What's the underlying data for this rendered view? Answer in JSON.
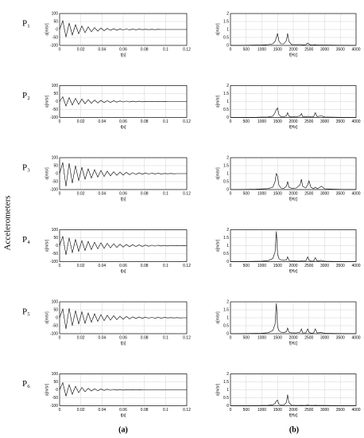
{
  "group_label": "Accelerometers",
  "panel_labels": [
    "(a)",
    "(b)"
  ],
  "row_labels": [
    "P₁",
    "P₂",
    "P₃",
    "P₄",
    "P₅",
    "P₆"
  ],
  "chart_data": [
    {
      "type": "line",
      "color": "#000000",
      "grid": true,
      "xlabel": "t[s]",
      "ylabel": "a[m/s²]",
      "xlim": [
        0,
        0.12
      ],
      "ylim": [
        -100,
        100
      ],
      "xticks": [
        0,
        0.02,
        0.04,
        0.06,
        0.08,
        0.1,
        0.12
      ],
      "yticks": [
        -100,
        -50,
        0,
        50,
        100
      ],
      "x": [
        0,
        0.003,
        0.006,
        0.009,
        0.012,
        0.015,
        0.018,
        0.021,
        0.024,
        0.027,
        0.03,
        0.033,
        0.036,
        0.039,
        0.042,
        0.045,
        0.048,
        0.051,
        0.054,
        0.057,
        0.06,
        0.063,
        0.066,
        0.069,
        0.072,
        0.075,
        0.078,
        0.081,
        0.084,
        0.087,
        0.09,
        0.093,
        0.096,
        0.099,
        0.102,
        0.105,
        0.108,
        0.111,
        0.114,
        0.117,
        0.12
      ],
      "values": [
        0,
        55,
        -48,
        40,
        -35,
        30,
        -27,
        22,
        -20,
        17,
        -15,
        12,
        -11,
        9,
        -8,
        7,
        -6,
        5,
        -5,
        4,
        -3,
        3,
        -3,
        2,
        -2,
        2,
        -1,
        1,
        -1,
        1,
        -1,
        1,
        0,
        0,
        0,
        0,
        0,
        0,
        0,
        0,
        0
      ]
    },
    {
      "type": "line",
      "color": "#000000",
      "grid": true,
      "xlabel": "f[Hz]",
      "ylabel": "a[m/s²]",
      "xlim": [
        0,
        4000
      ],
      "ylim": [
        0,
        2
      ],
      "xticks": [
        0,
        500,
        1000,
        1500,
        2000,
        2500,
        3000,
        3500,
        4000
      ],
      "yticks": [
        0,
        0.5,
        1,
        1.5,
        2
      ],
      "x": [
        0,
        200,
        500,
        800,
        1000,
        1200,
        1350,
        1420,
        1460,
        1500,
        1540,
        1600,
        1700,
        1780,
        1820,
        1860,
        1950,
        2100,
        2220,
        2260,
        2300,
        2400,
        2460,
        2500,
        2560,
        2650,
        2700,
        2760,
        2900,
        3000,
        3500,
        4000
      ],
      "values": [
        0,
        0,
        0.01,
        0.02,
        0.03,
        0.05,
        0.1,
        0.25,
        0.5,
        0.75,
        0.3,
        0.1,
        0.1,
        0.3,
        0.75,
        0.25,
        0.05,
        0.05,
        0.05,
        0.05,
        0.03,
        0.05,
        0.15,
        0.08,
        0.03,
        0.03,
        0.05,
        0.02,
        0.02,
        0.02,
        0.01,
        0
      ]
    },
    {
      "type": "line",
      "color": "#000000",
      "grid": true,
      "xlabel": "t[s]",
      "ylabel": "a[m/s²]",
      "xlim": [
        0,
        0.12
      ],
      "ylim": [
        -100,
        100
      ],
      "xticks": [
        0,
        0.02,
        0.04,
        0.06,
        0.08,
        0.1,
        0.12
      ],
      "yticks": [
        -100,
        -50,
        0,
        50,
        100
      ],
      "x": [
        0,
        0.003,
        0.006,
        0.009,
        0.012,
        0.015,
        0.018,
        0.021,
        0.024,
        0.027,
        0.03,
        0.033,
        0.036,
        0.039,
        0.042,
        0.045,
        0.048,
        0.051,
        0.054,
        0.057,
        0.06,
        0.063,
        0.066,
        0.069,
        0.072,
        0.075,
        0.078,
        0.081,
        0.084,
        0.087,
        0.09,
        0.093,
        0.096,
        0.099,
        0.102,
        0.105,
        0.108,
        0.111,
        0.114,
        0.117,
        0.12
      ],
      "values": [
        0,
        30,
        -28,
        25,
        -22,
        20,
        -18,
        16,
        -14,
        12,
        -11,
        10,
        -9,
        8,
        -7,
        6,
        -6,
        5,
        -4,
        4,
        -3,
        3,
        -3,
        2,
        -2,
        2,
        -2,
        1,
        -1,
        1,
        -1,
        1,
        -1,
        1,
        0,
        0,
        0,
        0,
        0,
        0,
        0
      ]
    },
    {
      "type": "line",
      "color": "#000000",
      "grid": true,
      "xlabel": "f[Hz]",
      "ylabel": "a[m/s²]",
      "xlim": [
        0,
        4000
      ],
      "ylim": [
        0,
        2
      ],
      "xticks": [
        0,
        500,
        1000,
        1500,
        2000,
        2500,
        3000,
        3500,
        4000
      ],
      "yticks": [
        0,
        0.5,
        1,
        1.5,
        2
      ],
      "x": [
        0,
        200,
        500,
        800,
        1000,
        1200,
        1350,
        1420,
        1460,
        1500,
        1540,
        1600,
        1700,
        1780,
        1820,
        1860,
        1950,
        2100,
        2220,
        2260,
        2300,
        2400,
        2460,
        2500,
        2560,
        2650,
        2700,
        2760,
        2900,
        3000,
        3500,
        4000
      ],
      "values": [
        0,
        0,
        0.01,
        0.01,
        0.02,
        0.03,
        0.08,
        0.3,
        0.5,
        0.6,
        0.2,
        0.05,
        0.05,
        0.1,
        0.3,
        0.08,
        0.03,
        0.05,
        0.1,
        0.25,
        0.05,
        0.03,
        0.08,
        0.05,
        0.03,
        0.05,
        0.3,
        0.06,
        0.1,
        0.03,
        0.01,
        0
      ]
    },
    {
      "type": "line",
      "color": "#000000",
      "grid": true,
      "xlabel": "t[s]",
      "ylabel": "a[m/s²]",
      "xlim": [
        0,
        0.12
      ],
      "ylim": [
        -100,
        100
      ],
      "xticks": [
        0,
        0.02,
        0.04,
        0.06,
        0.08,
        0.1,
        0.12
      ],
      "yticks": [
        -100,
        -50,
        0,
        50,
        100
      ],
      "x": [
        0,
        0.003,
        0.006,
        0.009,
        0.012,
        0.015,
        0.018,
        0.021,
        0.024,
        0.027,
        0.03,
        0.033,
        0.036,
        0.039,
        0.042,
        0.045,
        0.048,
        0.051,
        0.054,
        0.057,
        0.06,
        0.063,
        0.066,
        0.069,
        0.072,
        0.075,
        0.078,
        0.081,
        0.084,
        0.087,
        0.09,
        0.093,
        0.096,
        0.099,
        0.102,
        0.105,
        0.108,
        0.111,
        0.114,
        0.117,
        0.12
      ],
      "values": [
        0,
        70,
        -80,
        65,
        -60,
        50,
        -45,
        40,
        -35,
        30,
        -28,
        25,
        -22,
        20,
        -18,
        16,
        -14,
        12,
        -11,
        10,
        -9,
        8,
        -7,
        6,
        -6,
        5,
        -4,
        4,
        -3,
        3,
        -2,
        2,
        -2,
        1,
        -1,
        1,
        -1,
        0,
        0,
        0,
        0
      ]
    },
    {
      "type": "line",
      "color": "#000000",
      "grid": true,
      "xlabel": "f[Hz]",
      "ylabel": "a[m/s²]",
      "xlim": [
        0,
        4000
      ],
      "ylim": [
        0,
        2
      ],
      "xticks": [
        0,
        500,
        1000,
        1500,
        2000,
        2500,
        3000,
        3500,
        4000
      ],
      "yticks": [
        0,
        0.5,
        1,
        1.5,
        2
      ],
      "x": [
        0,
        200,
        500,
        800,
        1000,
        1200,
        1350,
        1420,
        1460,
        1500,
        1540,
        1600,
        1700,
        1780,
        1820,
        1860,
        1950,
        2100,
        2220,
        2260,
        2300,
        2400,
        2460,
        2500,
        2560,
        2650,
        2700,
        2760,
        2900,
        3000,
        3500,
        4000
      ],
      "values": [
        0,
        0,
        0.01,
        0.02,
        0.04,
        0.06,
        0.15,
        0.5,
        1,
        0.85,
        0.3,
        0.1,
        0.08,
        0.2,
        0.5,
        0.15,
        0.08,
        0.1,
        0.3,
        0.65,
        0.2,
        0.1,
        0.3,
        0.55,
        0.15,
        0.05,
        0.15,
        0.05,
        0.2,
        0.05,
        0.01,
        0
      ]
    },
    {
      "type": "line",
      "color": "#000000",
      "grid": true,
      "xlabel": "t[s]",
      "ylabel": "a[m/s²]",
      "xlim": [
        0,
        0.12
      ],
      "ylim": [
        -100,
        100
      ],
      "xticks": [
        0,
        0.02,
        0.04,
        0.06,
        0.08,
        0.1,
        0.12
      ],
      "yticks": [
        -100,
        -50,
        0,
        50,
        100
      ],
      "x": [
        0,
        0.003,
        0.006,
        0.009,
        0.012,
        0.015,
        0.018,
        0.021,
        0.024,
        0.027,
        0.03,
        0.033,
        0.036,
        0.039,
        0.042,
        0.045,
        0.048,
        0.051,
        0.054,
        0.057,
        0.06,
        0.063,
        0.066,
        0.069,
        0.072,
        0.075,
        0.078,
        0.081,
        0.084,
        0.087,
        0.09,
        0.093,
        0.096,
        0.099,
        0.102,
        0.105,
        0.108,
        0.111,
        0.114,
        0.117,
        0.12
      ],
      "values": [
        0,
        60,
        -58,
        50,
        -45,
        40,
        -36,
        32,
        -30,
        27,
        -25,
        22,
        -20,
        18,
        -17,
        15,
        -14,
        12,
        -11,
        10,
        -9,
        8,
        -7,
        7,
        -6,
        5,
        -5,
        4,
        -4,
        3,
        -3,
        3,
        -2,
        2,
        -2,
        2,
        -1,
        1,
        -1,
        1,
        0
      ]
    },
    {
      "type": "line",
      "color": "#000000",
      "grid": true,
      "xlabel": "f[Hz]",
      "ylabel": "a[m/s²]",
      "xlim": [
        0,
        4000
      ],
      "ylim": [
        0,
        2
      ],
      "xticks": [
        0,
        500,
        1000,
        1500,
        2000,
        2500,
        3000,
        3500,
        4000
      ],
      "yticks": [
        0,
        0.5,
        1,
        1.5,
        2
      ],
      "x": [
        0,
        200,
        500,
        800,
        1000,
        1200,
        1350,
        1420,
        1460,
        1500,
        1540,
        1600,
        1700,
        1780,
        1820,
        1860,
        1950,
        2100,
        2220,
        2260,
        2300,
        2400,
        2460,
        2500,
        2560,
        2650,
        2700,
        2760,
        2900,
        3000,
        3500,
        4000
      ],
      "values": [
        0,
        0,
        0.01,
        0.02,
        0.03,
        0.06,
        0.2,
        0.6,
        1.9,
        0.5,
        0.2,
        0.1,
        0.08,
        0.1,
        0.3,
        0.08,
        0.05,
        0.03,
        0.03,
        0.05,
        0.03,
        0.05,
        0.3,
        0.1,
        0.03,
        0.03,
        0.25,
        0.05,
        0.08,
        0.02,
        0.01,
        0
      ]
    },
    {
      "type": "line",
      "color": "#000000",
      "grid": true,
      "xlabel": "t[s]",
      "ylabel": "a[m/s²]",
      "xlim": [
        0,
        0.12
      ],
      "ylim": [
        -100,
        100
      ],
      "xticks": [
        0,
        0.02,
        0.04,
        0.06,
        0.08,
        0.1,
        0.12
      ],
      "yticks": [
        -100,
        -50,
        0,
        50,
        100
      ],
      "x": [
        0,
        0.003,
        0.006,
        0.009,
        0.012,
        0.015,
        0.018,
        0.021,
        0.024,
        0.027,
        0.03,
        0.033,
        0.036,
        0.039,
        0.042,
        0.045,
        0.048,
        0.051,
        0.054,
        0.057,
        0.06,
        0.063,
        0.066,
        0.069,
        0.072,
        0.075,
        0.078,
        0.081,
        0.084,
        0.087,
        0.09,
        0.093,
        0.096,
        0.099,
        0.102,
        0.105,
        0.108,
        0.111,
        0.114,
        0.117,
        0.12
      ],
      "values": [
        0,
        55,
        -70,
        60,
        -50,
        45,
        -40,
        38,
        -35,
        30,
        -28,
        25,
        -23,
        20,
        -18,
        16,
        -15,
        13,
        -12,
        10,
        -9,
        8,
        -7,
        6,
        -5,
        5,
        -4,
        4,
        -3,
        3,
        -3,
        2,
        -2,
        2,
        -1,
        1,
        -1,
        1,
        -1,
        0,
        0
      ]
    },
    {
      "type": "line",
      "color": "#000000",
      "grid": true,
      "xlabel": "f[Hz]",
      "ylabel": "a[m/s²]",
      "xlim": [
        0,
        4000
      ],
      "ylim": [
        0,
        2
      ],
      "xticks": [
        0,
        500,
        1000,
        1500,
        2000,
        2500,
        3000,
        3500,
        4000
      ],
      "yticks": [
        0,
        0.5,
        1,
        1.5,
        2
      ],
      "x": [
        0,
        200,
        500,
        800,
        1000,
        1200,
        1350,
        1420,
        1460,
        1500,
        1540,
        1600,
        1700,
        1780,
        1820,
        1860,
        1950,
        2100,
        2220,
        2260,
        2300,
        2400,
        2460,
        2500,
        2560,
        2650,
        2700,
        2760,
        2900,
        3000,
        3500,
        4000
      ],
      "values": [
        0,
        0,
        0.01,
        0.02,
        0.03,
        0.06,
        0.2,
        0.6,
        1.9,
        0.45,
        0.2,
        0.1,
        0.08,
        0.12,
        0.35,
        0.1,
        0.05,
        0.05,
        0.1,
        0.3,
        0.05,
        0.05,
        0.3,
        0.1,
        0.03,
        0.05,
        0.3,
        0.05,
        0.08,
        0.02,
        0.01,
        0
      ]
    },
    {
      "type": "line",
      "color": "#000000",
      "grid": true,
      "xlabel": "t[s]",
      "ylabel": "a[m/s²]",
      "xlim": [
        0,
        0.12
      ],
      "ylim": [
        -100,
        100
      ],
      "xticks": [
        0,
        0.02,
        0.04,
        0.06,
        0.08,
        0.1,
        0.12
      ],
      "yticks": [
        -100,
        -50,
        0,
        50,
        100
      ],
      "x": [
        0,
        0.003,
        0.006,
        0.009,
        0.012,
        0.015,
        0.018,
        0.021,
        0.024,
        0.027,
        0.03,
        0.033,
        0.036,
        0.039,
        0.042,
        0.045,
        0.048,
        0.051,
        0.054,
        0.057,
        0.06,
        0.063,
        0.066,
        0.069,
        0.072,
        0.075,
        0.078,
        0.081,
        0.084,
        0.087,
        0.09,
        0.093,
        0.096,
        0.099,
        0.102,
        0.105,
        0.108,
        0.111,
        0.114,
        0.117,
        0.12
      ],
      "values": [
        0,
        45,
        -40,
        32,
        -28,
        22,
        -18,
        15,
        -12,
        10,
        -8,
        7,
        -6,
        5,
        -4,
        4,
        -3,
        3,
        -2,
        2,
        -2,
        1,
        -1,
        1,
        -1,
        1,
        0,
        0,
        0,
        0,
        0,
        0,
        0,
        0,
        0,
        0,
        0,
        0,
        0,
        0,
        0
      ]
    },
    {
      "type": "line",
      "color": "#000000",
      "grid": true,
      "xlabel": "f[Hz]",
      "ylabel": "a[m/s²]",
      "xlim": [
        0,
        4000
      ],
      "ylim": [
        0,
        2
      ],
      "xticks": [
        0,
        500,
        1000,
        1500,
        2000,
        2500,
        3000,
        3500,
        4000
      ],
      "yticks": [
        0,
        0.5,
        1,
        1.5,
        2
      ],
      "x": [
        0,
        200,
        500,
        800,
        1000,
        1200,
        1350,
        1420,
        1460,
        1500,
        1540,
        1600,
        1700,
        1780,
        1820,
        1860,
        1950,
        2100,
        2220,
        2260,
        2300,
        2400,
        2460,
        2500,
        2560,
        2650,
        2700,
        2760,
        2900,
        3000,
        3500,
        4000
      ],
      "values": [
        0,
        0,
        0.01,
        0.01,
        0.02,
        0.03,
        0.06,
        0.15,
        0.3,
        0.35,
        0.1,
        0.05,
        0.05,
        0.2,
        0.7,
        0.2,
        0.03,
        0.02,
        0.02,
        0.03,
        0.02,
        0.02,
        0.05,
        0.03,
        0.02,
        0.02,
        0.03,
        0.02,
        0.02,
        0.02,
        0.01,
        0
      ]
    }
  ]
}
